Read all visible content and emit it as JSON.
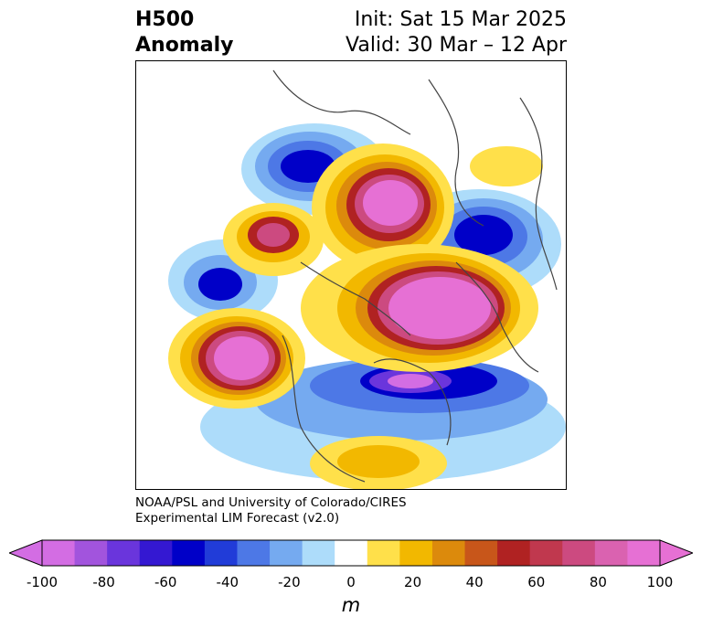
{
  "title": {
    "left_line1": "H500",
    "left_line2": "Anomaly",
    "right_line1": "Init: Sat 15 Mar 2025",
    "right_line2": "Valid: 30 Mar – 12 Apr"
  },
  "credit": {
    "line1": "NOAA/PSL and University of Colorado/CIRES",
    "line2": "Experimental LIM Forecast (v2.0)"
  },
  "colorbar": {
    "unit": "m",
    "ticks": [
      "-100",
      "-80",
      "-60",
      "-40",
      "-20",
      "0",
      "20",
      "40",
      "60",
      "80",
      "100"
    ],
    "levels": [
      -100,
      -90,
      -80,
      -70,
      -60,
      -50,
      -40,
      -30,
      -20,
      -10,
      10,
      20,
      30,
      40,
      50,
      60,
      70,
      80,
      90,
      100
    ],
    "colors": [
      "#d36de3",
      "#a254dd",
      "#6a35dc",
      "#3418d2",
      "#0000c8",
      "#213cd8",
      "#4d78e6",
      "#75aaf0",
      "#addcfa",
      "#ffffff",
      "#ffe04a",
      "#f2b800",
      "#dc8a0c",
      "#c8561a",
      "#b02222",
      "#c0384e",
      "#cc4a80",
      "#da62b0",
      "#e670d4"
    ],
    "extend_min_color": "#d36de3",
    "extend_max_color": "#e670d4"
  },
  "map": {
    "projection": "polar-stereographic",
    "field": "500 hPa geopotential height anomaly"
  }
}
